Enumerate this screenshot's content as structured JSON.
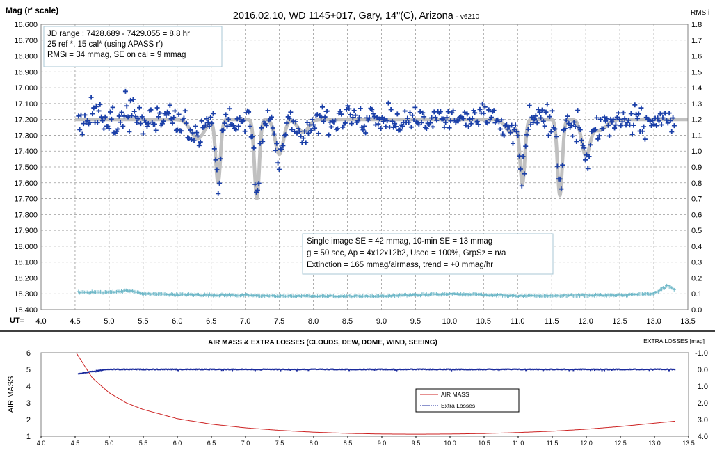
{
  "chart_data": [
    {
      "type": "scatter",
      "title": "2016.02.10, WD 1145+017, Gary, 14\"(C), Arizona",
      "title_suffix": "- v6210",
      "ylabel_left": "Mag (r' scale)",
      "ylabel_right": "RMS i",
      "x_prefix": "UT=",
      "xlim": [
        4.0,
        13.5
      ],
      "ylim": [
        16.6,
        18.4
      ],
      "y_inverted": true,
      "y2lim": [
        0.0,
        1.8
      ],
      "grid": true,
      "x_ticks": [
        "4.0",
        "4.5",
        "5.0",
        "5.5",
        "6.0",
        "6.5",
        "7.0",
        "7.5",
        "8.0",
        "8.5",
        "9.0",
        "9.5",
        "10.0",
        "10.5",
        "11.0",
        "11.5",
        "12.0",
        "12.5",
        "13.0",
        "13.5"
      ],
      "y_ticks": [
        "16.600",
        "16.700",
        "16.800",
        "16.900",
        "17.000",
        "17.100",
        "17.200",
        "17.300",
        "17.400",
        "17.500",
        "17.600",
        "17.700",
        "17.800",
        "17.900",
        "18.000",
        "18.100",
        "18.200",
        "18.300",
        "18.400"
      ],
      "y2_ticks": [
        "1.8",
        "1.7",
        "1.6",
        "1.5",
        "1.4",
        "1.3",
        "1.2",
        "1.1",
        "1.0",
        "0.9",
        "0.8",
        "0.7",
        "0.6",
        "0.5",
        "0.4",
        "0.3",
        "0.2",
        "0.1",
        "0.0"
      ],
      "info_box": [
        "JD range  : 7428.689  - 7429.055  = 8.8 hr",
        " 25 ref *, 15 cal* (using APASS r')",
        "RMSi = 34 mmag, SE on cal = 9 mmag"
      ],
      "stats_box": [
        "Single image SE = 42 mmag, 10-min SE = 13 mmag",
        "g = 50 sec, Ap = 4x12x12b2, Used = 100%, GrpSz = n/a",
        "Extinction = 165 mmag/airmass, trend = +0 mmag/hr"
      ],
      "model": {
        "baseline": 17.2,
        "dips": [
          {
            "center": 6.3,
            "depth": 0.12,
            "width": 0.1
          },
          {
            "center": 6.6,
            "depth": 0.4,
            "width": 0.035
          },
          {
            "center": 7.17,
            "depth": 0.5,
            "width": 0.035
          },
          {
            "center": 7.5,
            "depth": 0.22,
            "width": 0.06
          },
          {
            "center": 7.85,
            "depth": 0.08,
            "width": 0.08
          },
          {
            "center": 11.07,
            "depth": 0.4,
            "width": 0.035
          },
          {
            "center": 11.62,
            "depth": 0.48,
            "width": 0.035
          },
          {
            "center": 12.0,
            "depth": 0.22,
            "width": 0.06
          },
          {
            "center": 10.9,
            "depth": 0.08,
            "width": 0.08
          },
          {
            "center": 12.2,
            "depth": 0.07,
            "width": 0.1
          }
        ],
        "color": "#c0c0c0"
      },
      "series": [
        {
          "name": "",
          "color": "#1a3fa8",
          "marker": "plus",
          "x_range": [
            4.55,
            13.3
          ],
          "count": 470,
          "scatter_sigma_mag": 0.045
        },
        {
          "name": "",
          "color": "#6fb8c8",
          "marker": "plus",
          "description_points": [
            [
              4.55,
              0.11
            ],
            [
              5.0,
              0.11
            ],
            [
              5.3,
              0.12
            ],
            [
              5.5,
              0.1
            ],
            [
              6.0,
              0.095
            ],
            [
              7.0,
              0.09
            ],
            [
              7.5,
              0.085
            ],
            [
              8.0,
              0.085
            ],
            [
              9.0,
              0.085
            ],
            [
              10.0,
              0.1
            ],
            [
              10.5,
              0.095
            ],
            [
              11.0,
              0.085
            ],
            [
              12.0,
              0.09
            ],
            [
              12.5,
              0.09
            ],
            [
              13.0,
              0.1
            ],
            [
              13.2,
              0.15
            ],
            [
              13.3,
              0.13
            ]
          ]
        }
      ]
    },
    {
      "type": "line",
      "title": "AIR MASS & EXTRA LOSSES (CLOUDS, DEW, DOME, WIND, SEEING)",
      "ylabel_left": "AIR MASS",
      "ylabel_right": "EXTRA LOSSES [mag]",
      "xlim": [
        4.0,
        13.5
      ],
      "ylim": [
        1,
        6
      ],
      "y2lim": [
        -1.0,
        4.0
      ],
      "y2_inverted": true,
      "grid": false,
      "x_ticks": [
        "4.0",
        "4.5",
        "5.0",
        "5.5",
        "6.0",
        "6.5",
        "7.0",
        "7.5",
        "8.0",
        "8.5",
        "9.0",
        "9.5",
        "10.0",
        "10.5",
        "11.0",
        "11.5",
        "12.0",
        "12.5",
        "13.0",
        "13.5"
      ],
      "y_ticks": [
        "1",
        "2",
        "3",
        "4",
        "5",
        "6"
      ],
      "y2_ticks": [
        "-1.0",
        "0.0",
        "1.0",
        "2.0",
        "3.0",
        "4.0"
      ],
      "legend": {
        "placement": "center-right",
        "entries": [
          {
            "label": "AIR MASS",
            "color": "#cc2020"
          },
          {
            "label": "Extra Losses",
            "color": "#1a2a9c"
          }
        ]
      },
      "series": [
        {
          "name": "AIR MASS",
          "color": "#cc2020",
          "x": [
            4.5,
            4.75,
            5.0,
            5.25,
            5.5,
            6.0,
            6.5,
            7.0,
            7.5,
            8.0,
            8.5,
            9.0,
            9.5,
            10.0,
            10.5,
            11.0,
            11.5,
            12.0,
            12.5,
            13.0,
            13.3
          ],
          "values": [
            6.1,
            4.5,
            3.6,
            3.0,
            2.6,
            2.05,
            1.72,
            1.5,
            1.35,
            1.24,
            1.17,
            1.13,
            1.12,
            1.13,
            1.16,
            1.22,
            1.3,
            1.42,
            1.58,
            1.78,
            1.9
          ]
        },
        {
          "name": "Extra Losses",
          "color": "#1a2a9c",
          "x": [
            4.55,
            4.7,
            4.9,
            5.0,
            13.3
          ],
          "values": [
            0.27,
            0.15,
            0.04,
            0.0,
            0.0
          ]
        }
      ]
    }
  ]
}
